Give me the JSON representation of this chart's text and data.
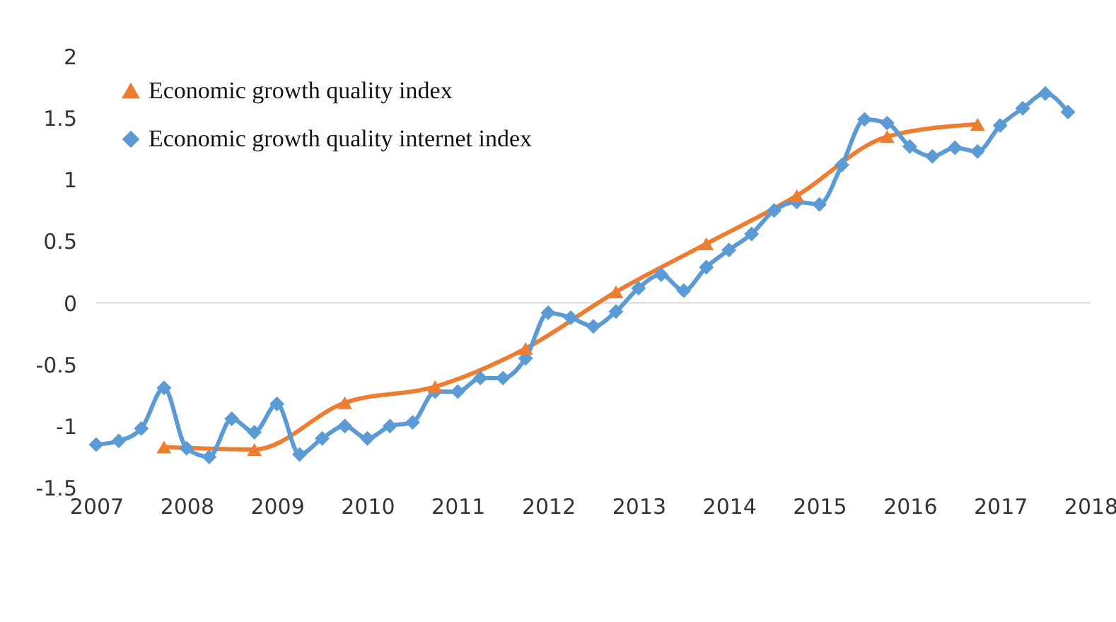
{
  "chart_data": {
    "type": "line",
    "xlim": [
      2007,
      2018
    ],
    "xticks": [
      2007,
      2008,
      2009,
      2010,
      2011,
      2012,
      2013,
      2014,
      2015,
      2016,
      2017,
      2018
    ],
    "ylim": [
      -1.5,
      2
    ],
    "yticks": [
      -1.5,
      -1,
      -0.5,
      0,
      0.5,
      1,
      1.5,
      2
    ],
    "grid": false,
    "legend": "top left",
    "line_style": "solid",
    "ref_lines": [
      {
        "axis": "y",
        "value": 0,
        "color": "#d9d9d9"
      }
    ],
    "series": [
      {
        "name": "Economic growth quality index",
        "color": "#ed7d31",
        "marker": "triangle",
        "x": [
          2007.75,
          2008.75,
          2009.75,
          2010.75,
          2011.75,
          2012.75,
          2013.75,
          2014.75,
          2015.75,
          2016.75
        ],
        "values": [
          -1.17,
          -1.19,
          -0.81,
          -0.68,
          -0.37,
          0.09,
          0.48,
          0.87,
          1.35,
          1.45
        ]
      },
      {
        "name": "Economic growth quality internet index",
        "color": "#5b9bd5",
        "marker": "diamond",
        "x": [
          2007,
          2007.25,
          2007.5,
          2007.75,
          2008,
          2008.25,
          2008.5,
          2008.75,
          2009,
          2009.25,
          2009.5,
          2009.75,
          2010,
          2010.25,
          2010.5,
          2010.75,
          2011,
          2011.25,
          2011.5,
          2011.75,
          2012,
          2012.25,
          2012.5,
          2012.75,
          2013,
          2013.25,
          2013.5,
          2013.75,
          2014,
          2014.25,
          2014.5,
          2014.75,
          2015,
          2015.25,
          2015.5,
          2015.75,
          2016,
          2016.25,
          2016.5,
          2016.75,
          2017,
          2017.25,
          2017.5,
          2017.75
        ],
        "values": [
          -1.15,
          -1.12,
          -1.02,
          -0.69,
          -1.18,
          -1.25,
          -0.94,
          -1.05,
          -0.82,
          -1.23,
          -1.1,
          -1.0,
          -1.1,
          -1.0,
          -0.97,
          -0.72,
          -0.72,
          -0.61,
          -0.61,
          -0.45,
          -0.08,
          -0.12,
          -0.19,
          -0.07,
          0.12,
          0.23,
          0.1,
          0.29,
          0.43,
          0.56,
          0.75,
          0.82,
          0.8,
          1.12,
          1.49,
          1.46,
          1.27,
          1.19,
          1.26,
          1.23,
          1.44,
          1.58,
          1.7,
          1.55
        ]
      }
    ]
  }
}
